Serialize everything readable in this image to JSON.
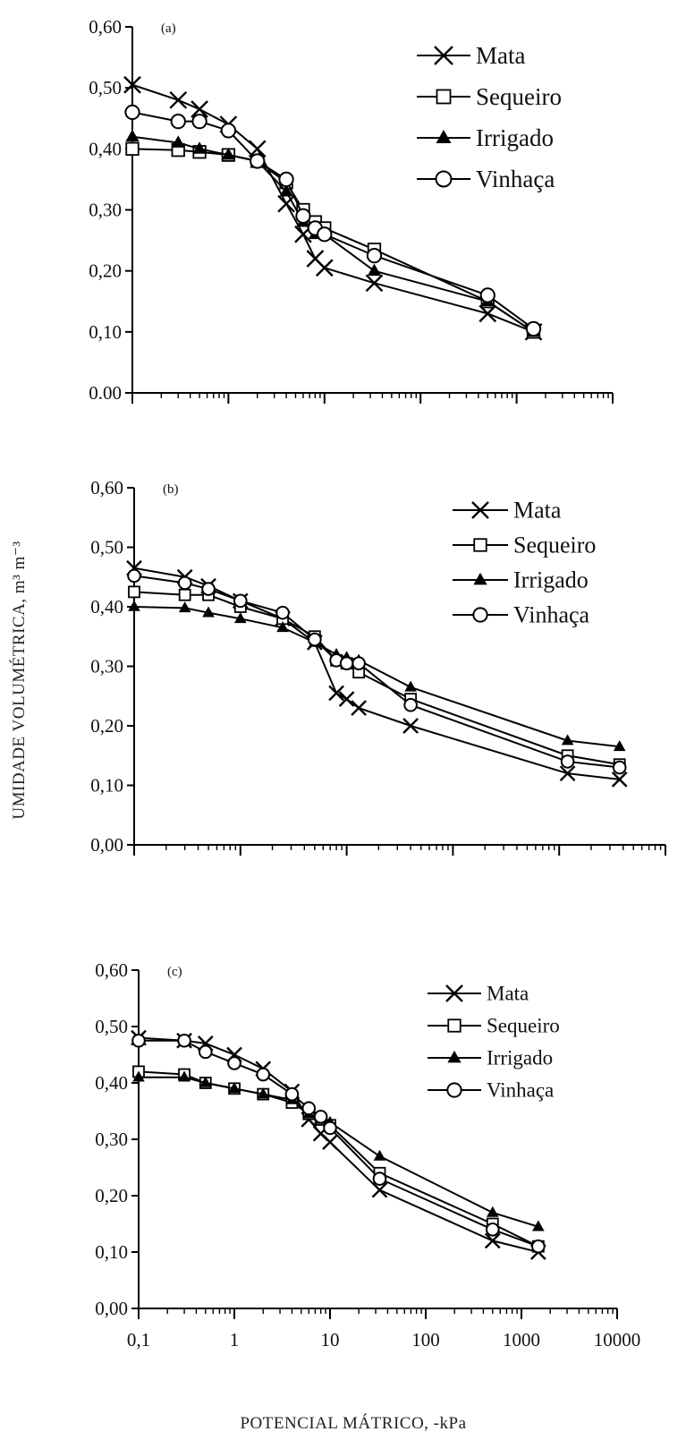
{
  "figure": {
    "ylabel": "UMIDADE VOLUMÉTRICA, m³ m⁻³",
    "xlabel": "POTENCIAL MÁTRICO, -kPa",
    "x_tick_labels": [
      "0,1",
      "1",
      "10",
      "100",
      "1000",
      "10000"
    ]
  },
  "chart_data": [
    {
      "type": "line",
      "panel_label": "(a)",
      "x_scale": "log",
      "xlim": [
        0.1,
        10000
      ],
      "ylim": [
        0,
        0.6
      ],
      "y_ticks": [
        0,
        0.1,
        0.2,
        0.3,
        0.4,
        0.5,
        0.6
      ],
      "y_tick_labels": [
        "0.00",
        "0,10",
        "0,20",
        "0,30",
        "0,40",
        "0,50",
        "0,60"
      ],
      "x_tick_labels": [],
      "legend_position": "top-right",
      "series": [
        {
          "name": "Mata",
          "marker": "x",
          "x": [
            0.1,
            0.3,
            0.5,
            1,
            2,
            4,
            6,
            8,
            10,
            33,
            500,
            1500
          ],
          "y": [
            0.505,
            0.48,
            0.465,
            0.44,
            0.4,
            0.31,
            0.26,
            0.22,
            0.205,
            0.18,
            0.13,
            0.1
          ]
        },
        {
          "name": "Sequeiro",
          "marker": "square",
          "x": [
            0.1,
            0.3,
            0.5,
            1,
            2,
            4,
            6,
            8,
            10,
            33,
            500,
            1500
          ],
          "y": [
            0.4,
            0.398,
            0.395,
            0.39,
            0.38,
            0.345,
            0.3,
            0.28,
            0.27,
            0.235,
            0.15,
            0.1
          ]
        },
        {
          "name": "Irrigado",
          "marker": "triangle",
          "x": [
            0.1,
            0.3,
            0.5,
            1,
            2,
            4,
            6,
            8,
            10,
            33,
            500,
            1500
          ],
          "y": [
            0.42,
            0.41,
            0.4,
            0.39,
            0.38,
            0.33,
            0.28,
            0.26,
            0.26,
            0.2,
            0.15,
            0.1
          ]
        },
        {
          "name": "Vinhaça",
          "marker": "circle",
          "x": [
            0.1,
            0.3,
            0.5,
            1,
            2,
            4,
            6,
            8,
            10,
            33,
            500,
            1500
          ],
          "y": [
            0.46,
            0.445,
            0.445,
            0.43,
            0.38,
            0.35,
            0.29,
            0.27,
            0.26,
            0.225,
            0.16,
            0.105
          ]
        }
      ]
    },
    {
      "type": "line",
      "panel_label": "(b)",
      "x_scale": "log",
      "xlim": [
        0.1,
        10000
      ],
      "ylim": [
        0,
        0.6
      ],
      "y_ticks": [
        0,
        0.1,
        0.2,
        0.3,
        0.4,
        0.5,
        0.6
      ],
      "y_tick_labels": [
        "0,00",
        "0,10",
        "0,20",
        "0,30",
        "0,40",
        "0,50",
        "0,60"
      ],
      "x_tick_labels": [],
      "legend_position": "top-right",
      "series": [
        {
          "name": "Mata",
          "marker": "x",
          "x": [
            0.1,
            0.3,
            0.5,
            1,
            2.5,
            5,
            8,
            10,
            13,
            40,
            1200,
            3700
          ],
          "y": [
            0.465,
            0.45,
            0.435,
            0.41,
            0.38,
            0.34,
            0.255,
            0.245,
            0.23,
            0.2,
            0.12,
            0.11
          ]
        },
        {
          "name": "Sequeiro",
          "marker": "square",
          "x": [
            0.1,
            0.3,
            0.5,
            1,
            2.5,
            5,
            8,
            10,
            13,
            40,
            1200,
            3700
          ],
          "y": [
            0.425,
            0.42,
            0.42,
            0.4,
            0.38,
            0.35,
            0.31,
            0.305,
            0.29,
            0.245,
            0.15,
            0.135
          ]
        },
        {
          "name": "Irrigado",
          "marker": "triangle",
          "x": [
            0.1,
            0.3,
            0.5,
            1,
            2.5,
            5,
            8,
            10,
            13,
            40,
            1200,
            3700
          ],
          "y": [
            0.4,
            0.398,
            0.39,
            0.38,
            0.365,
            0.34,
            0.32,
            0.315,
            0.31,
            0.265,
            0.175,
            0.165
          ]
        },
        {
          "name": "Vinhaça",
          "marker": "circle",
          "x": [
            0.1,
            0.3,
            0.5,
            1,
            2.5,
            5,
            8,
            10,
            13,
            40,
            1200,
            3700
          ],
          "y": [
            0.452,
            0.44,
            0.43,
            0.41,
            0.39,
            0.345,
            0.31,
            0.305,
            0.305,
            0.235,
            0.14,
            0.13
          ]
        }
      ]
    },
    {
      "type": "line",
      "panel_label": "(c)",
      "x_scale": "log",
      "xlim": [
        0.1,
        10000
      ],
      "ylim": [
        0,
        0.6
      ],
      "y_ticks": [
        0,
        0.1,
        0.2,
        0.3,
        0.4,
        0.5,
        0.6
      ],
      "y_tick_labels": [
        "0,00",
        "0,10",
        "0,20",
        "0,30",
        "0,40",
        "0,50",
        "0,60"
      ],
      "x_tick_labels": [
        "0,1",
        "1",
        "10",
        "100",
        "1000",
        "10000"
      ],
      "legend_position": "top-right",
      "series": [
        {
          "name": "Mata",
          "marker": "x",
          "x": [
            0.1,
            0.3,
            0.5,
            1,
            2,
            4,
            6,
            8,
            10,
            33,
            500,
            1500
          ],
          "y": [
            0.48,
            0.475,
            0.47,
            0.45,
            0.425,
            0.385,
            0.335,
            0.31,
            0.295,
            0.21,
            0.12,
            0.1
          ]
        },
        {
          "name": "Sequeiro",
          "marker": "square",
          "x": [
            0.1,
            0.3,
            0.5,
            1,
            2,
            4,
            6,
            8,
            10,
            33,
            500,
            1500
          ],
          "y": [
            0.42,
            0.415,
            0.4,
            0.39,
            0.38,
            0.365,
            0.345,
            0.335,
            0.325,
            0.24,
            0.15,
            0.11
          ]
        },
        {
          "name": "Irrigado",
          "marker": "triangle",
          "x": [
            0.1,
            0.3,
            0.5,
            1,
            2,
            4,
            6,
            8,
            10,
            33,
            500,
            1500
          ],
          "y": [
            0.41,
            0.41,
            0.4,
            0.39,
            0.38,
            0.37,
            0.345,
            0.335,
            0.33,
            0.27,
            0.17,
            0.145
          ]
        },
        {
          "name": "Vinhaça",
          "marker": "circle",
          "x": [
            0.1,
            0.3,
            0.5,
            1,
            2,
            4,
            6,
            8,
            10,
            33,
            500,
            1500
          ],
          "y": [
            0.475,
            0.475,
            0.455,
            0.435,
            0.415,
            0.38,
            0.355,
            0.34,
            0.32,
            0.23,
            0.14,
            0.11
          ]
        }
      ]
    }
  ]
}
